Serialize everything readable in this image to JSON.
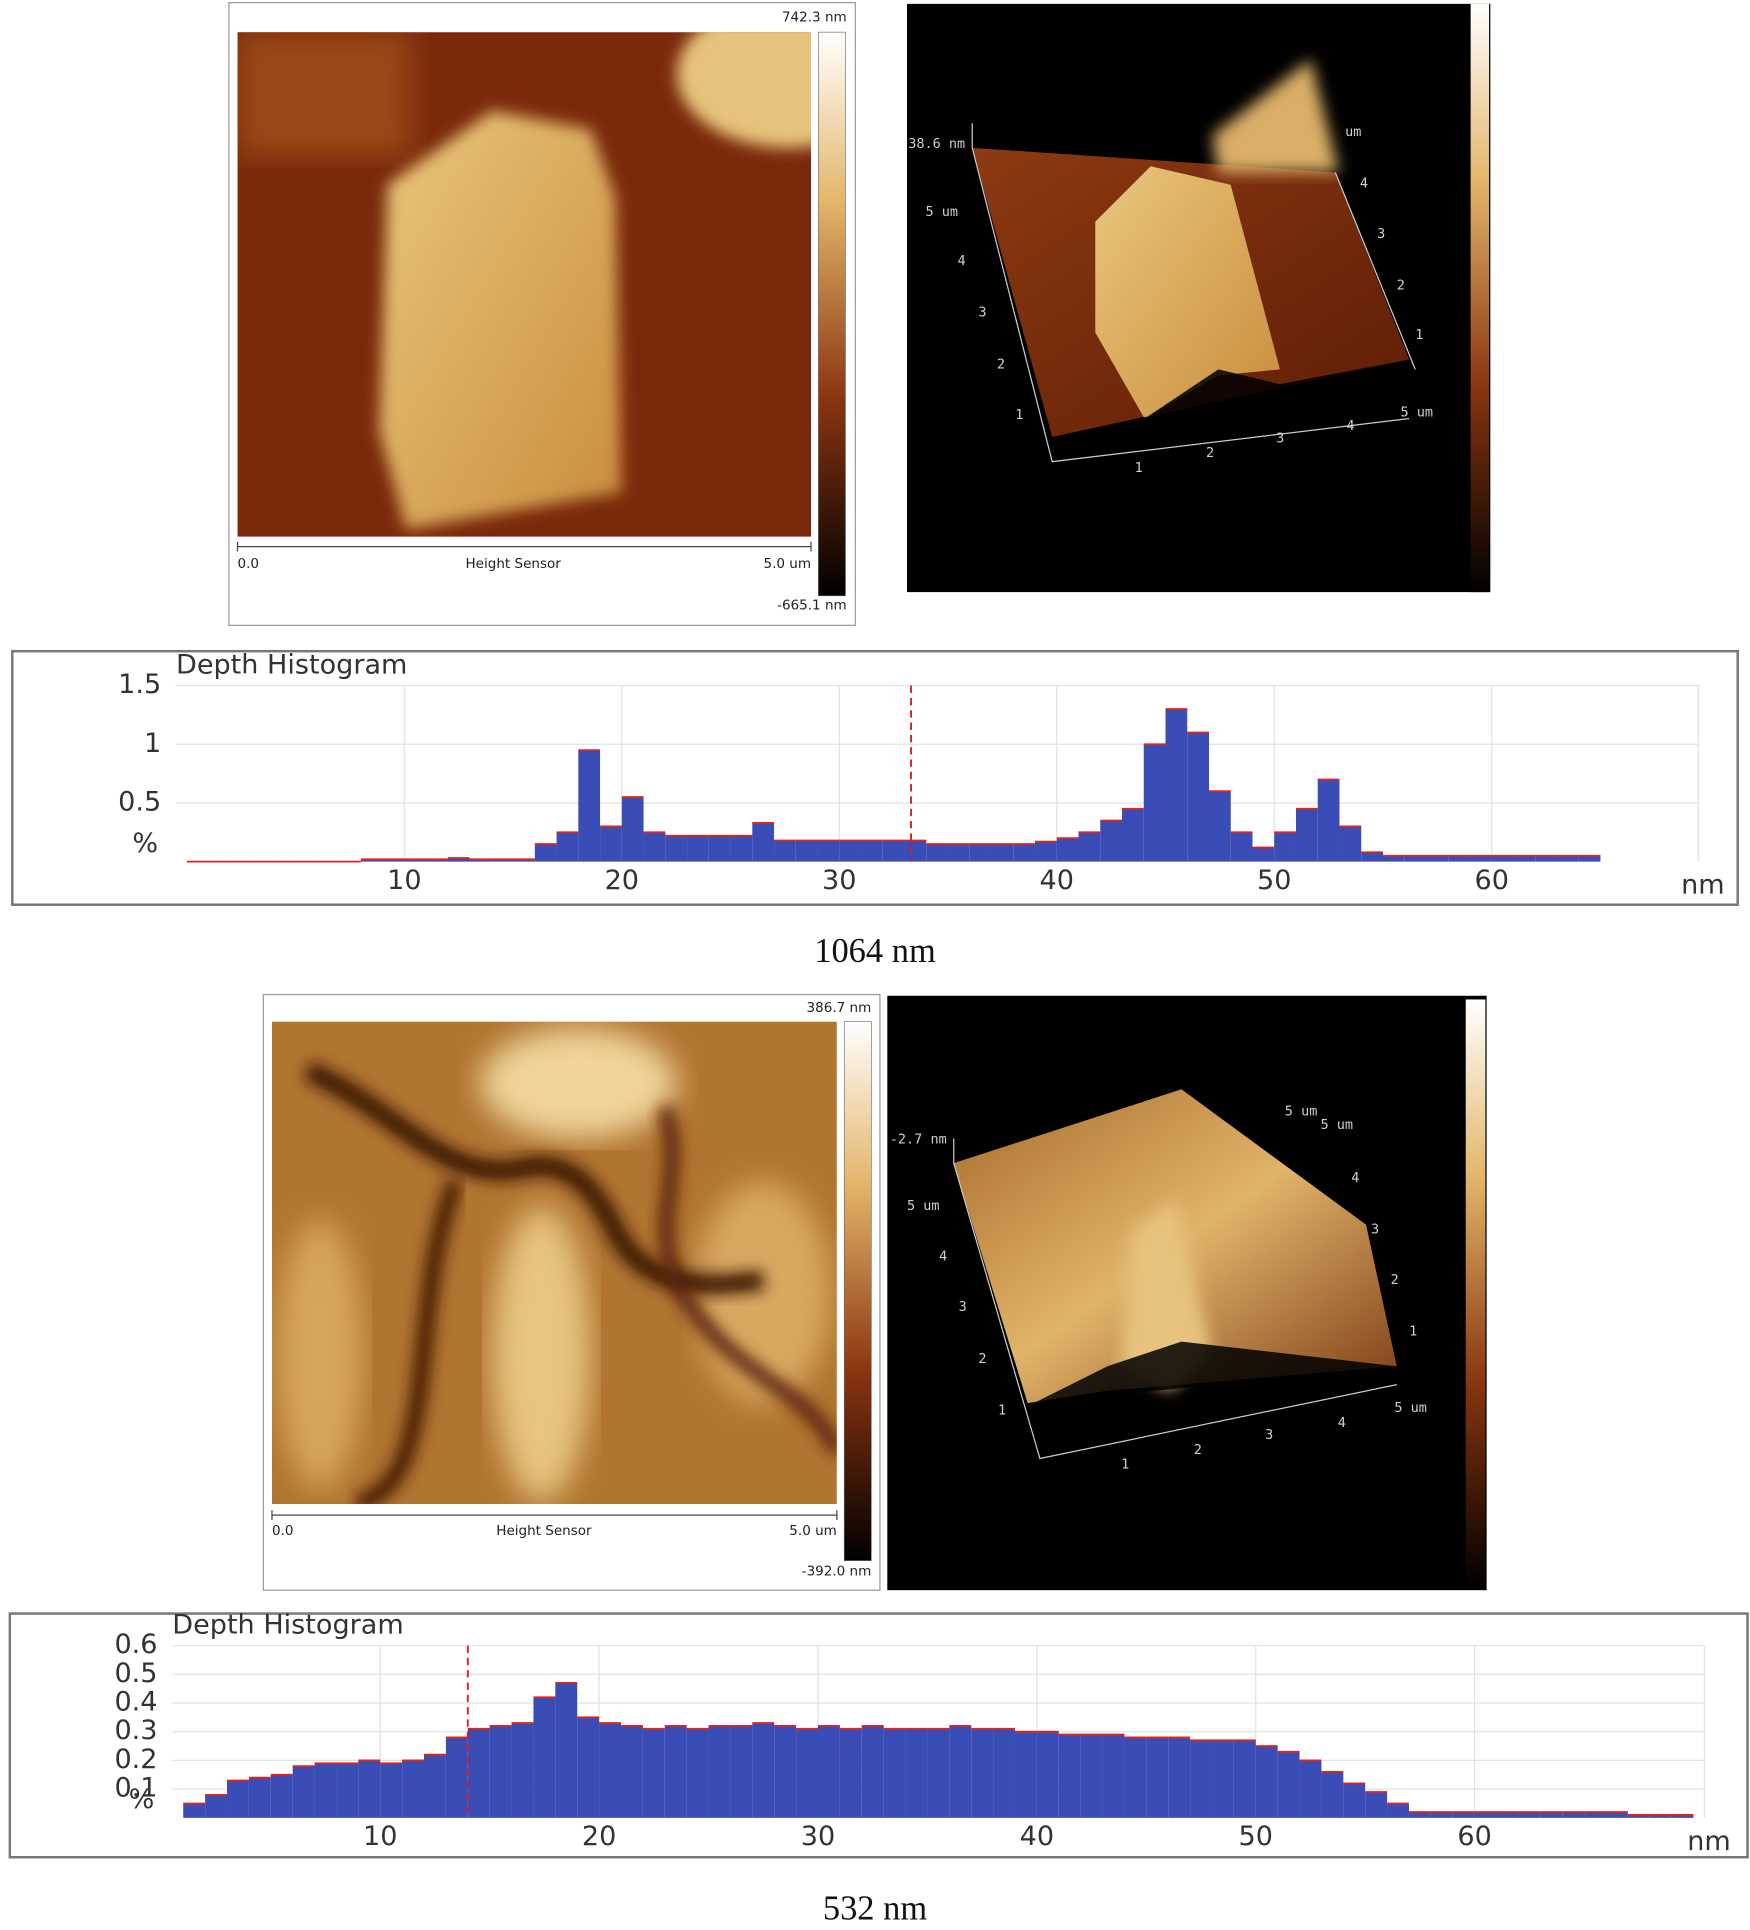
{
  "figure": {
    "panels": [
      {
        "caption": "1064 nm",
        "map2d": {
          "scale_max": "742.3 nm",
          "scale_min": "-665.1 nm",
          "x_start": "0.0",
          "x_label": "Height Sensor",
          "x_end": "5.0 um"
        },
        "map3d": {
          "labels": [
            "38.6 nm",
            "5 um",
            "4",
            "3",
            "2",
            "1",
            "1",
            "2",
            "3",
            "4",
            "5 um",
            "1",
            "2",
            "3",
            "4",
            "um"
          ]
        }
      },
      {
        "caption": "532 nm",
        "map2d": {
          "scale_max": "386.7 nm",
          "scale_min": "-392.0 nm",
          "x_start": "0.0",
          "x_label": "Height Sensor",
          "x_end": "5.0 um"
        },
        "map3d": {
          "labels": [
            "-2.7 nm",
            "5 um",
            "4",
            "3",
            "2",
            "1",
            "1",
            "2",
            "3",
            "4",
            "5 um",
            "1",
            "2",
            "3",
            "4",
            "5 um",
            "5 um"
          ]
        }
      }
    ]
  },
  "chart_data": [
    {
      "type": "histogram",
      "title": "Depth Histogram",
      "x_label": "nm",
      "y_label": "%",
      "bins": [
        0,
        1,
        2,
        3,
        4,
        5,
        6,
        7,
        8,
        9,
        10,
        11,
        12,
        13,
        14,
        15,
        16,
        17,
        18,
        19,
        20,
        21,
        22,
        23,
        24,
        25,
        26,
        27,
        28,
        29,
        30,
        31,
        32,
        33,
        34,
        35,
        36,
        37,
        38,
        39,
        40,
        41,
        42,
        43,
        44,
        45,
        46,
        47,
        48,
        49,
        50,
        51,
        52,
        53,
        54,
        55,
        56,
        57,
        58,
        59,
        60,
        61,
        62,
        63,
        64,
        65
      ],
      "values": [
        0,
        0,
        0,
        0,
        0,
        0,
        0,
        0,
        0.02,
        0.02,
        0.02,
        0.02,
        0.03,
        0.02,
        0.02,
        0.02,
        0.15,
        0.25,
        0.95,
        0.3,
        0.55,
        0.25,
        0.22,
        0.22,
        0.22,
        0.22,
        0.33,
        0.18,
        0.18,
        0.18,
        0.18,
        0.18,
        0.18,
        0.18,
        0.15,
        0.15,
        0.15,
        0.15,
        0.15,
        0.17,
        0.2,
        0.25,
        0.35,
        0.45,
        1.0,
        1.3,
        1.1,
        0.6,
        0.25,
        0.12,
        0.25,
        0.45,
        0.7,
        0.3,
        0.08,
        0.05,
        0.05,
        0.05,
        0.05,
        0.05,
        0.05,
        0.05,
        0.05,
        0.05,
        0.05
      ],
      "color": "#3a4cb5",
      "edge_color": "#e0241b",
      "xlim": [
        -0.5,
        69.5
      ],
      "ylim": [
        0,
        1.5
      ],
      "xticks": [
        10,
        20,
        30,
        40,
        50,
        60
      ],
      "yticks": [
        0.5,
        1,
        1.5
      ],
      "grid": true,
      "marker_x": 33.3,
      "marker_color": "#d21f1f"
    },
    {
      "type": "histogram",
      "title": "Depth Histogram",
      "x_label": "nm",
      "y_label": "%",
      "bins": [
        1,
        2,
        3,
        4,
        5,
        6,
        7,
        8,
        9,
        10,
        11,
        12,
        13,
        14,
        15,
        16,
        17,
        18,
        19,
        20,
        21,
        22,
        23,
        24,
        25,
        26,
        27,
        28,
        29,
        30,
        31,
        32,
        33,
        34,
        35,
        36,
        37,
        38,
        39,
        40,
        41,
        42,
        43,
        44,
        45,
        46,
        47,
        48,
        49,
        50,
        51,
        52,
        53,
        54,
        55,
        56,
        57,
        58,
        59,
        60,
        61,
        62,
        63,
        64,
        65,
        66,
        67,
        68,
        69,
        70
      ],
      "values": [
        0.05,
        0.08,
        0.13,
        0.14,
        0.15,
        0.18,
        0.19,
        0.19,
        0.2,
        0.19,
        0.2,
        0.22,
        0.28,
        0.31,
        0.32,
        0.33,
        0.42,
        0.47,
        0.35,
        0.33,
        0.32,
        0.31,
        0.32,
        0.31,
        0.32,
        0.32,
        0.33,
        0.32,
        0.31,
        0.32,
        0.31,
        0.32,
        0.31,
        0.31,
        0.31,
        0.32,
        0.31,
        0.31,
        0.3,
        0.3,
        0.29,
        0.29,
        0.29,
        0.28,
        0.28,
        0.28,
        0.27,
        0.27,
        0.27,
        0.25,
        0.23,
        0.2,
        0.16,
        0.12,
        0.09,
        0.05,
        0.02,
        0.02,
        0.02,
        0.02,
        0.02,
        0.02,
        0.02,
        0.02,
        0.02,
        0.02,
        0.01,
        0.01,
        0.01
      ],
      "color": "#3a4cb5",
      "edge_color": "#e0241b",
      "xlim": [
        0.5,
        70.5
      ],
      "ylim": [
        0,
        0.6
      ],
      "xticks": [
        10,
        20,
        30,
        40,
        50,
        60
      ],
      "yticks": [
        0.1,
        0.2,
        0.3,
        0.4,
        0.5,
        0.6
      ],
      "grid": true,
      "marker_x": 14,
      "marker_color": "#d21f1f"
    }
  ]
}
